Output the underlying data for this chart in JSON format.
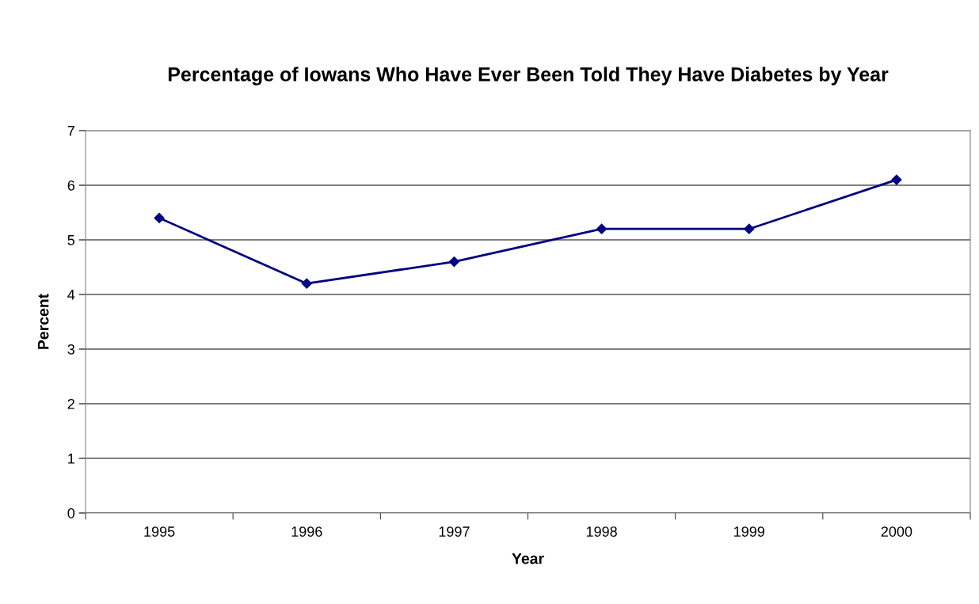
{
  "chart_data": {
    "type": "line",
    "title": "Percentage of Iowans Who Have Ever Been Told They Have Diabetes by Year",
    "xlabel": "Year",
    "ylabel": "Percent",
    "categories": [
      "1995",
      "1996",
      "1997",
      "1998",
      "1999",
      "2000"
    ],
    "series": [
      {
        "color": "#000080",
        "values": [
          5.4,
          4.2,
          4.6,
          5.2,
          5.2,
          6.1
        ]
      }
    ],
    "ylim": [
      0,
      7
    ],
    "yticks": [
      0,
      1,
      2,
      3,
      4,
      5,
      6,
      7
    ],
    "grid": "y",
    "marker": "diamond",
    "line_style": "solid"
  }
}
